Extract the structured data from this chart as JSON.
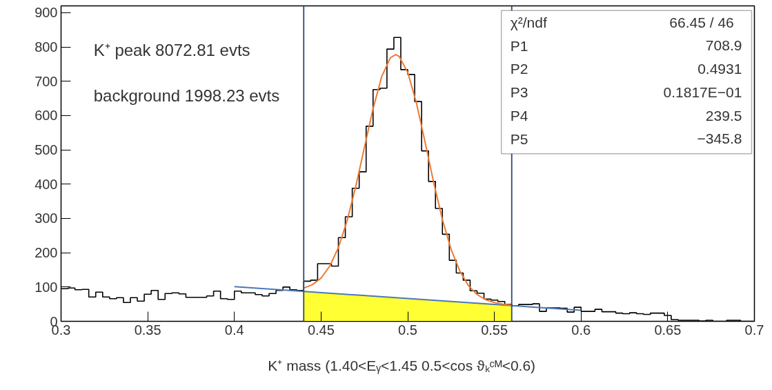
{
  "chart_data": {
    "type": "histogram",
    "xlabel": "K⁺ mass (1.40<Eᵧ<1.45    0.5<cos ϑₖᶜᴹ<0.6)",
    "bins": [
      0.3,
      0.304,
      0.308,
      0.312,
      0.316,
      0.32,
      0.324,
      0.328,
      0.332,
      0.336,
      0.34,
      0.344,
      0.348,
      0.352,
      0.356,
      0.36,
      0.364,
      0.368,
      0.372,
      0.376,
      0.38,
      0.384,
      0.388,
      0.392,
      0.396,
      0.4,
      0.404,
      0.408,
      0.412,
      0.416,
      0.42,
      0.424,
      0.428,
      0.432,
      0.436,
      0.44,
      0.444,
      0.448,
      0.452,
      0.456,
      0.46,
      0.464,
      0.468,
      0.472,
      0.476,
      0.48,
      0.484,
      0.488,
      0.492,
      0.496,
      0.5,
      0.504,
      0.508,
      0.512,
      0.516,
      0.52,
      0.524,
      0.528,
      0.532,
      0.536,
      0.54,
      0.544,
      0.548,
      0.552,
      0.556,
      0.56,
      0.564,
      0.568,
      0.572,
      0.576,
      0.58,
      0.584,
      0.588,
      0.592,
      0.596,
      0.6,
      0.604,
      0.608,
      0.612,
      0.616,
      0.62,
      0.624,
      0.628,
      0.632,
      0.636,
      0.64,
      0.644,
      0.648,
      0.652,
      0.656,
      0.66,
      0.664,
      0.668,
      0.672,
      0.676,
      0.68,
      0.684,
      0.688,
      0.692,
      0.696,
      0.7
    ],
    "series": [
      {
        "color": "#000000",
        "values": [
          95,
          97,
          92,
          93,
          71,
          85,
          71,
          66,
          69,
          55,
          69,
          59,
          79,
          90,
          64,
          81,
          83,
          80,
          70,
          70,
          70,
          74,
          88,
          66,
          64,
          88,
          83,
          83,
          78,
          74,
          81,
          90,
          100,
          92,
          90,
          117,
          120,
          168,
          168,
          161,
          244,
          305,
          388,
          436,
          569,
          676,
          680,
          794,
          828,
          734,
          720,
          641,
          497,
          408,
          329,
          254,
          178,
          141,
          120,
          89,
          82,
          65,
          62,
          58,
          49,
          45,
          49,
          49,
          51,
          29,
          39,
          39,
          38,
          27,
          41,
          29,
          29,
          35,
          28,
          28,
          24,
          22,
          25,
          22,
          20,
          24,
          24,
          17,
          5,
          3,
          3,
          3,
          1,
          3,
          0,
          0,
          3,
          3,
          0,
          0
        ]
      },
      {
        "type": "area",
        "color": "#ffff33",
        "x": [
          0.44,
          0.56
        ],
        "values": [
          87,
          46
        ]
      },
      {
        "type": "line",
        "color": "#4a78b8",
        "x": [
          0.4,
          0.6
        ],
        "values": [
          101,
          32
        ]
      },
      {
        "type": "line",
        "color": "#f07830",
        "x": [
          0.44,
          0.445,
          0.45,
          0.455,
          0.46,
          0.465,
          0.47,
          0.475,
          0.48,
          0.485,
          0.49,
          0.4931,
          0.495,
          0.5,
          0.505,
          0.51,
          0.515,
          0.52,
          0.525,
          0.53,
          0.535,
          0.54,
          0.545,
          0.55,
          0.555,
          0.56
        ],
        "values": [
          97,
          107,
          126,
          161,
          215,
          293,
          393,
          507,
          620,
          714,
          769,
          778,
          773,
          726,
          637,
          523,
          404,
          297,
          210,
          147,
          104,
          78,
          63,
          55,
          50,
          47
        ]
      }
    ],
    "ref_lines": [
      {
        "axis": "x",
        "value": 0.44,
        "color": "#2a4a7a"
      },
      {
        "axis": "x",
        "value": 0.56,
        "color": "#2a4a7a"
      }
    ],
    "annotations": [
      "K⁺ peak 8072.81 evts",
      "background 1998.23 evts",
      "χ²/ndf 66.45  /  46",
      "P1 708.9",
      "P2 0.4931",
      "P3 0.1817E−01",
      "P4 239.5",
      "P5 −345.8"
    ],
    "xlim": [
      0.3,
      0.7
    ],
    "ylim": [
      0,
      920
    ],
    "xticks": [
      0.3,
      0.35,
      0.4,
      0.45,
      0.5,
      0.55,
      0.6,
      0.65,
      0.7
    ],
    "yticks": [
      0,
      100,
      200,
      300,
      400,
      500,
      600,
      700,
      800,
      900
    ],
    "grid": false
  }
}
